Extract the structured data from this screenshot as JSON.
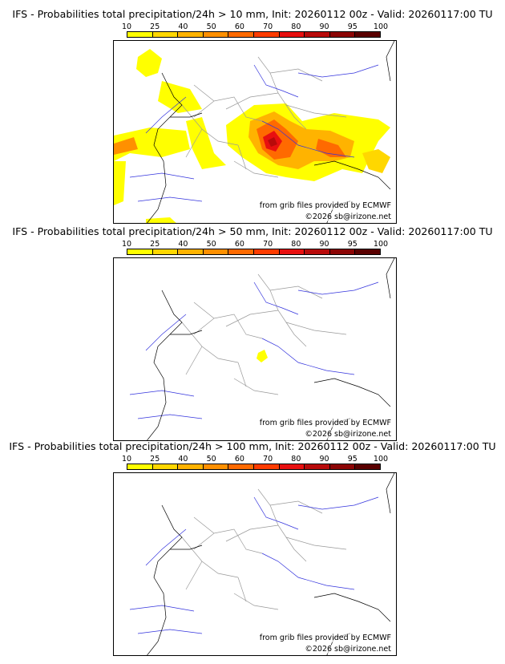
{
  "colorbar": {
    "ticks": [
      "10",
      "25",
      "40",
      "50",
      "60",
      "70",
      "80",
      "90",
      "95",
      "100"
    ],
    "colors": [
      "#ffff00",
      "#ffd700",
      "#ffb300",
      "#ff9000",
      "#ff6a00",
      "#ff3c00",
      "#e81010",
      "#b80a0a",
      "#8c0505",
      "#5a0000"
    ]
  },
  "panels": [
    {
      "title": "IFS - Probabilities total precipitation/24h > 10 mm, Init: 20260112 00z - Valid: 20260117:00 TU",
      "source_text": "from grib files provided by ECMWF",
      "copyright_text": "©2026 sb@irizone.net"
    },
    {
      "title": "IFS - Probabilities total precipitation/24h > 50 mm, Init: 20260112 00z - Valid: 20260117:00 TU",
      "source_text": "from grib files provided by ECMWF",
      "copyright_text": "©2026 sb@irizone.net"
    },
    {
      "title": "IFS - Probabilities total precipitation/24h > 100 mm, Init: 20260112 00z - Valid: 20260117:00 TU",
      "source_text": "from grib files provided by ECMWF",
      "copyright_text": "©2026 sb@irizone.net"
    }
  ],
  "colors": {
    "coast": "#000000",
    "rivers": "#3333dd",
    "borders": "#999999"
  }
}
